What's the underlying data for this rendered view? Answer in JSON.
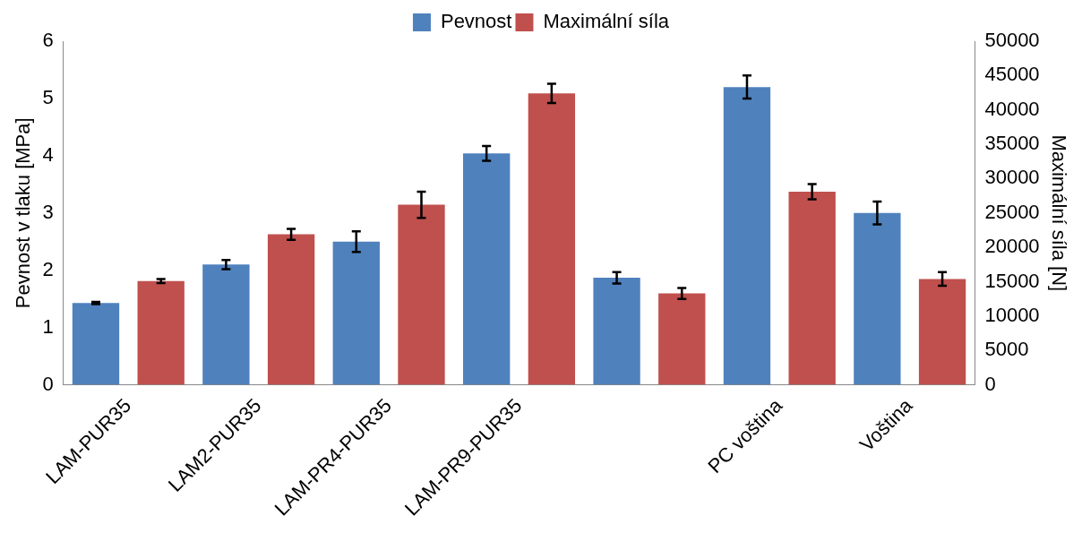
{
  "chart_data": {
    "type": "bar",
    "ylabel": "Pevnost v tlaku [MPa]",
    "y2label": "Maximální síla [N]",
    "categories": [
      "LAM-PUR35",
      "LAM2-PUR35",
      "LAM-PR4-PUR35",
      "LAM-PR9-PUR35",
      null,
      "PC voština",
      "Voština"
    ],
    "series": [
      {
        "name": "Pevnost",
        "color": "#4f81bd",
        "values": [
          1.43,
          2.1,
          2.5,
          4.04,
          1.87,
          5.2,
          3.0
        ],
        "errors": [
          0.02,
          0.08,
          0.18,
          0.13,
          0.1,
          0.2,
          0.2
        ]
      },
      {
        "name": "Maximální síla",
        "color": "#c0504d",
        "axis": "y2",
        "values": [
          15100,
          21900,
          26200,
          42400,
          13300,
          28100,
          15400
        ],
        "errors": [
          300,
          800,
          1900,
          1400,
          800,
          1100,
          1000
        ]
      }
    ],
    "ylim": [
      0,
      6
    ],
    "yticks": [
      0,
      1,
      2,
      3,
      4,
      5,
      6
    ],
    "y2lim": [
      0,
      50000
    ],
    "y2ticks": [
      0,
      5000,
      10000,
      15000,
      20000,
      25000,
      30000,
      35000,
      40000,
      45000,
      50000
    ],
    "grid": false,
    "legend": "top"
  }
}
